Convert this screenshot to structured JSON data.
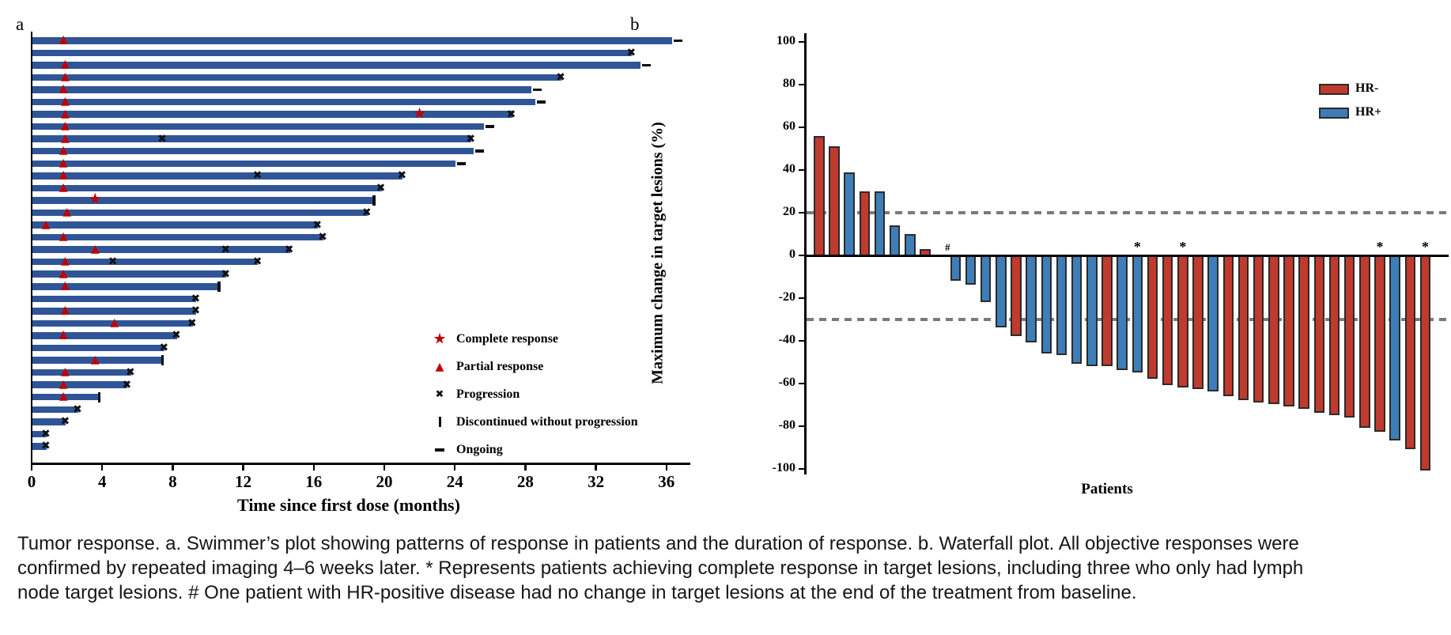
{
  "caption": {
    "lines": [
      "Tumor response. a. Swimmer’s plot showing patterns of response in patients and the duration of response. b. Waterfall plot. All objective responses were",
      "confirmed by repeated imaging 4–6 weeks later. * Represents patients achieving complete response in target lesions, including three who only had lymph",
      "node target lesions. # One patient with HR-positive disease had no change in target lesions at the end of the treatment from baseline."
    ]
  },
  "colors": {
    "swimmer_bar": "#2f5597",
    "marker_red": "#c00000",
    "marker_black": "#111111",
    "hr_neg": "#c03a2e",
    "hr_pos": "#3d7eb8",
    "bar_border": "#2b2b2b",
    "dashed_gray": "#7a7a7a",
    "axis_black": "#000000"
  },
  "chart_data": [
    {
      "type": "swimmer",
      "panel_label": "a",
      "xlabel": "Time since first dose (months)",
      "x_ticks": [
        0,
        4,
        8,
        12,
        16,
        20,
        24,
        28,
        32,
        36
      ],
      "xlim": [
        0,
        37.5
      ],
      "legend": [
        {
          "marker": "star",
          "label": "Complete response"
        },
        {
          "marker": "triangle",
          "label": "Partial response"
        },
        {
          "marker": "x",
          "label": "Progression"
        },
        {
          "marker": "vbar",
          "label": "Discontinued without progression"
        },
        {
          "marker": "dash",
          "label": "Ongoing"
        }
      ],
      "patients": [
        {
          "months": 36.3,
          "pr": 1.8,
          "end": "ongoing"
        },
        {
          "months": 34.0,
          "end": "x"
        },
        {
          "months": 34.5,
          "pr": 1.9,
          "end": "ongoing"
        },
        {
          "months": 30.0,
          "pr": 1.9,
          "end": "x"
        },
        {
          "months": 28.3,
          "pr": 1.8,
          "end": "ongoing"
        },
        {
          "months": 28.5,
          "pr": 1.9,
          "end": "ongoing"
        },
        {
          "months": 27.2,
          "pr": 1.9,
          "cr": 22.0,
          "end": "x"
        },
        {
          "months": 25.6,
          "pr": 1.9,
          "end": "ongoing"
        },
        {
          "months": 24.9,
          "pr": 1.9,
          "x_marks": [
            7.4
          ],
          "end": "x"
        },
        {
          "months": 25.0,
          "pr": 1.8,
          "end": "ongoing"
        },
        {
          "months": 24.0,
          "pr": 1.8,
          "end": "ongoing"
        },
        {
          "months": 21.0,
          "pr": 1.8,
          "x_marks": [
            12.8
          ],
          "end": "x"
        },
        {
          "months": 19.8,
          "pr": 1.8,
          "end": "x"
        },
        {
          "months": 19.3,
          "cr": 3.6,
          "end": "discontinued"
        },
        {
          "months": 19.0,
          "pr": 2.0,
          "end": "x"
        },
        {
          "months": 16.2,
          "pr": 0.8,
          "end": "x"
        },
        {
          "months": 16.5,
          "pr": 1.8,
          "end": "x"
        },
        {
          "months": 14.6,
          "pr": 3.6,
          "x_marks": [
            11.0
          ],
          "end": "x"
        },
        {
          "months": 12.8,
          "pr": 1.9,
          "x_marks": [
            4.6
          ],
          "end": "x"
        },
        {
          "months": 11.0,
          "pr": 1.8,
          "end": "x"
        },
        {
          "months": 10.5,
          "pr": 1.9,
          "end": "discontinued"
        },
        {
          "months": 9.3,
          "end": "x"
        },
        {
          "months": 9.3,
          "pr": 1.9,
          "end": "x"
        },
        {
          "months": 9.1,
          "pr": 4.7,
          "end": "x"
        },
        {
          "months": 8.2,
          "pr": 1.8,
          "end": "x"
        },
        {
          "months": 7.5,
          "end": "x"
        },
        {
          "months": 7.3,
          "pr": 3.6,
          "end": "discontinued"
        },
        {
          "months": 5.6,
          "pr": 1.9,
          "end": "x"
        },
        {
          "months": 5.4,
          "pr": 1.8,
          "end": "x"
        },
        {
          "months": 3.7,
          "pr": 1.8,
          "end": "discontinued"
        },
        {
          "months": 2.6,
          "end": "x"
        },
        {
          "months": 1.9,
          "end": "x"
        },
        {
          "months": 0.8,
          "end": "x"
        },
        {
          "months": 0.8,
          "end": "x"
        }
      ]
    },
    {
      "type": "waterfall",
      "panel_label": "b",
      "ylabel": "Maximum change in target lesions (%)",
      "xlabel": "Patients",
      "y_ticks": [
        100,
        80,
        60,
        40,
        20,
        0,
        -20,
        -40,
        -60,
        -80,
        -100
      ],
      "ylim": [
        -100,
        100
      ],
      "ref_lines": [
        20,
        -30
      ],
      "legend": [
        {
          "label": "HR-",
          "color_key": "hr_neg"
        },
        {
          "label": "HR+",
          "color_key": "hr_pos"
        }
      ],
      "bars": [
        {
          "value": 56,
          "group": "HR-"
        },
        {
          "value": 51,
          "group": "HR-"
        },
        {
          "value": 39,
          "group": "HR+"
        },
        {
          "value": 30,
          "group": "HR-"
        },
        {
          "value": 30,
          "group": "HR+"
        },
        {
          "value": 14,
          "group": "HR+"
        },
        {
          "value": 10,
          "group": "HR+"
        },
        {
          "value": 3,
          "group": "HR-"
        },
        {
          "value": 0,
          "group": "HR+",
          "annotation": "#"
        },
        {
          "value": -11,
          "group": "HR+"
        },
        {
          "value": -13,
          "group": "HR+"
        },
        {
          "value": -21,
          "group": "HR+"
        },
        {
          "value": -33,
          "group": "HR+"
        },
        {
          "value": -37,
          "group": "HR-"
        },
        {
          "value": -40,
          "group": "HR+"
        },
        {
          "value": -45,
          "group": "HR+"
        },
        {
          "value": -46,
          "group": "HR+"
        },
        {
          "value": -50,
          "group": "HR+"
        },
        {
          "value": -51,
          "group": "HR+"
        },
        {
          "value": -51,
          "group": "HR-"
        },
        {
          "value": -53,
          "group": "HR+"
        },
        {
          "value": -54,
          "group": "HR+",
          "annotation": "*"
        },
        {
          "value": -57,
          "group": "HR-"
        },
        {
          "value": -60,
          "group": "HR-"
        },
        {
          "value": -61,
          "group": "HR-",
          "annotation": "*"
        },
        {
          "value": -62,
          "group": "HR-"
        },
        {
          "value": -63,
          "group": "HR+"
        },
        {
          "value": -65,
          "group": "HR-"
        },
        {
          "value": -67,
          "group": "HR-"
        },
        {
          "value": -68,
          "group": "HR-"
        },
        {
          "value": -69,
          "group": "HR-"
        },
        {
          "value": -70,
          "group": "HR-"
        },
        {
          "value": -71,
          "group": "HR-"
        },
        {
          "value": -73,
          "group": "HR-"
        },
        {
          "value": -74,
          "group": "HR-"
        },
        {
          "value": -75,
          "group": "HR-"
        },
        {
          "value": -80,
          "group": "HR-"
        },
        {
          "value": -82,
          "group": "HR-",
          "annotation": "*"
        },
        {
          "value": -86,
          "group": "HR+"
        },
        {
          "value": -90,
          "group": "HR-"
        },
        {
          "value": -100,
          "group": "HR-",
          "annotation": "*"
        }
      ]
    }
  ]
}
